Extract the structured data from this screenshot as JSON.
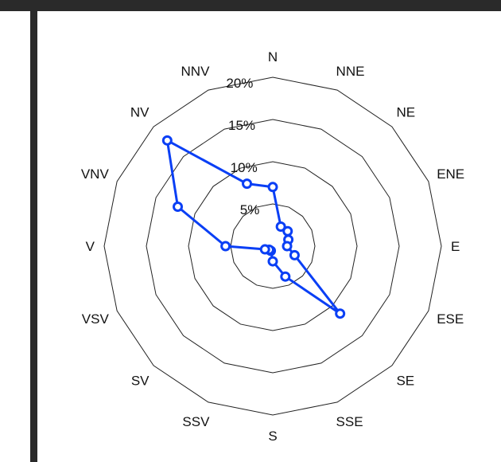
{
  "chart_data": {
    "type": "radar",
    "title": "",
    "directions": [
      "N",
      "NNE",
      "NE",
      "ENE",
      "E",
      "ESE",
      "SE",
      "SSE",
      "S",
      "SSV",
      "SV",
      "VSV",
      "V",
      "VNV",
      "NV",
      "NNV"
    ],
    "radial_ticks": [
      "5%",
      "10%",
      "15%",
      "20%"
    ],
    "radial_tick_values": [
      5,
      10,
      15,
      20
    ],
    "rmax": 20,
    "grid": true,
    "legend": "none",
    "series": [
      {
        "values": [
          7.0,
          2.5,
          2.5,
          2.0,
          1.7,
          2.8,
          11.3,
          3.9,
          1.8,
          0.6,
          0.6,
          1.0,
          5.6,
          12.2,
          17.7,
          8.0
        ],
        "color": "#0a3ff5"
      }
    ]
  },
  "colors": {
    "series": "#0a3ff5",
    "frame": "#2a2a2a",
    "grid": "#222222"
  }
}
